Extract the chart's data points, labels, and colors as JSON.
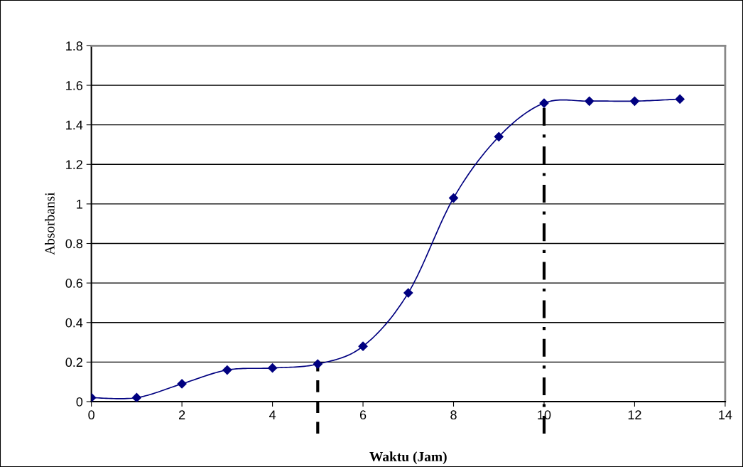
{
  "chart_data": {
    "type": "line",
    "xlabel": "Waktu (Jam)",
    "ylabel": "Absorbansi",
    "x": [
      0,
      1,
      2,
      3,
      4,
      5,
      6,
      7,
      8,
      9,
      10,
      11,
      12,
      13
    ],
    "series": [
      {
        "color": "#000080",
        "values": [
          0.02,
          0.02,
          0.09,
          0.16,
          0.17,
          0.19,
          0.28,
          0.55,
          1.03,
          1.34,
          1.51,
          1.52,
          1.52,
          1.53
        ]
      }
    ],
    "xlim": [
      0,
      14
    ],
    "xticks": [
      0,
      2,
      4,
      6,
      8,
      10,
      12,
      14
    ],
    "ylim": [
      0,
      1.8
    ],
    "yticks": [
      0,
      0.2,
      0.4,
      0.6,
      0.8,
      1,
      1.2,
      1.4,
      1.6,
      1.8
    ],
    "grid": "y",
    "marker": "diamond",
    "line_style": "solid",
    "ref_lines": [
      {
        "axis": "x",
        "value": 5,
        "color": "#000000",
        "line_style": "dashed"
      },
      {
        "axis": "x",
        "value": 10,
        "color": "#000000",
        "line_style": "dashdot"
      }
    ]
  }
}
